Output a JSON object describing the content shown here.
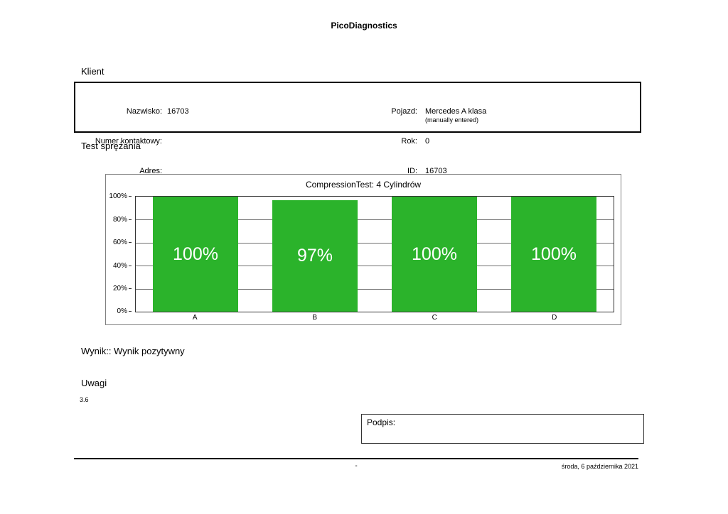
{
  "page": {
    "title": "PicoDiagnostics",
    "footer": {
      "center": "-",
      "date": "środa, 6 października 2021"
    }
  },
  "client": {
    "heading": "Klient",
    "fields_left": [
      {
        "label": "Nazwisko:",
        "value": "16703"
      },
      {
        "label": "Numer kontaktowy:",
        "value": ""
      },
      {
        "label": "Adres:",
        "value": ""
      }
    ],
    "fields_right": [
      {
        "label": "Pojazd:",
        "value": "Mercedes A klasa"
      },
      {
        "label": "Rok:",
        "value": "0"
      },
      {
        "label": "ID:",
        "value": "16703"
      }
    ],
    "note": "(manually entered)"
  },
  "test": {
    "heading": "Test sprężania",
    "result_text": "Wynik:: Wynik pozytywny",
    "remarks_heading": "Uwagi",
    "remarks_value": "3.6",
    "signature_label": "Podpis:"
  },
  "chart_data": {
    "type": "bar",
    "title": "CompressionTest: 4 Cylindrów",
    "categories": [
      "A",
      "B",
      "C",
      "D"
    ],
    "values": [
      100,
      97,
      100,
      100
    ],
    "bar_labels": [
      "100%",
      "97%",
      "100%",
      "100%"
    ],
    "ylabel": "",
    "xlabel": "",
    "ylim": [
      0,
      100
    ],
    "yticks": [
      "100%",
      "80%",
      "60%",
      "40%",
      "20%",
      "0%"
    ],
    "grid": true,
    "legend": "none",
    "bar_color": "#2bb32b"
  }
}
